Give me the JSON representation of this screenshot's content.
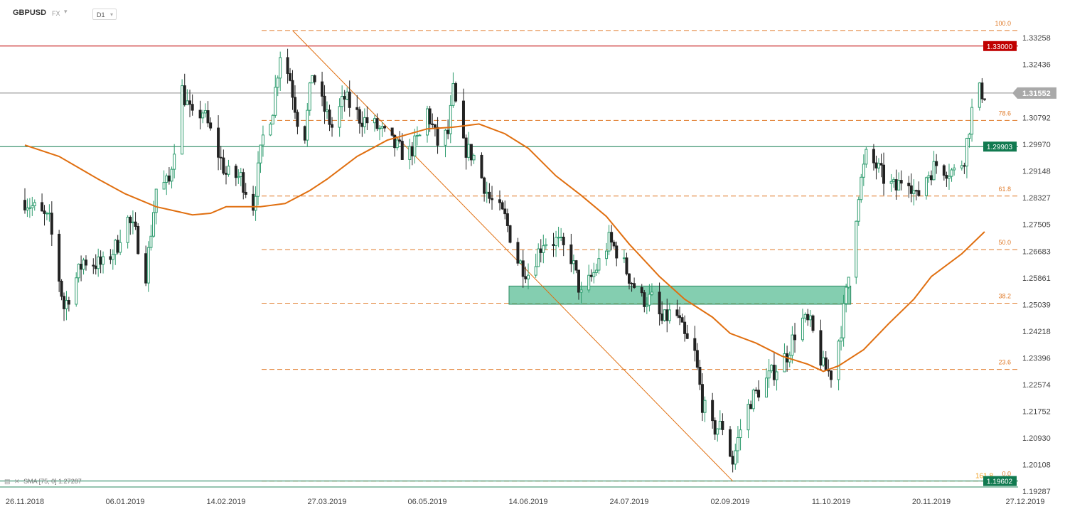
{
  "header": {
    "symbol": "GBPUSD",
    "market": "FX",
    "timeframe": "D1"
  },
  "indicator_legend": {
    "name": "SMA",
    "params": "[75, 0]",
    "value": "1.27287"
  },
  "colors": {
    "bull": "#2e9c6e",
    "bear": "#222222",
    "sma": "#e06f10",
    "fib": "#e07b2a",
    "resistance": "#c00000",
    "support": "#117a50",
    "price": "#8a8a8a",
    "zone": "#5bbd95"
  },
  "chart_data": {
    "type": "candlestick",
    "symbol": "GBPUSD",
    "timeframe": "D1",
    "x_ticks": [
      "26.11.2018",
      "06.01.2019",
      "14.02.2019",
      "27.03.2019",
      "06.05.2019",
      "14.06.2019",
      "24.07.2019",
      "02.09.2019",
      "11.10.2019",
      "20.11.2019",
      "27.12.2019"
    ],
    "y_ticks": [
      1.33258,
      1.32436,
      1.30792,
      1.2997,
      1.29148,
      1.28327,
      1.27505,
      1.26683,
      1.25861,
      1.25039,
      1.24218,
      1.23396,
      1.22574,
      1.21752,
      1.2093,
      1.20108,
      1.19287
    ],
    "ylim": [
      1.1915,
      1.3382
    ],
    "horizontal_levels": [
      {
        "label": "1.33000",
        "value": 1.33,
        "role": "resistance"
      },
      {
        "label": "1.31552",
        "value": 1.31552,
        "role": "price"
      },
      {
        "label": "1.29903",
        "value": 1.29903,
        "role": "support"
      },
      {
        "label": "1.19602",
        "value": 1.19602,
        "role": "support"
      }
    ],
    "fibonacci": [
      {
        "label": "100.0",
        "value": 1.3348
      },
      {
        "label": "78.6",
        "value": 1.3071
      },
      {
        "label": "61.8",
        "value": 1.2838
      },
      {
        "label": "50.0",
        "value": 1.2673
      },
      {
        "label": "38.2",
        "value": 1.2508
      },
      {
        "label": "23.6",
        "value": 1.2304
      },
      {
        "label": "0.0",
        "value": 1.19602
      }
    ],
    "fib_extension_label": "161.8",
    "zone": {
      "from": "2019-06-14",
      "to": "2019-10-18",
      "low": 1.252,
      "high": 1.2552
    },
    "trendline": {
      "start": [
        "2019-03-13",
        1.3348
      ],
      "end": [
        "2019-09-03",
        1.196
      ]
    },
    "sma": {
      "period": 75,
      "shift": 0,
      "last": 1.27287,
      "points": [
        [
          "2018-11-26",
          1.2995
        ],
        [
          "2018-12-10",
          1.296
        ],
        [
          "2018-12-26",
          1.289
        ],
        [
          "2019-01-06",
          1.2845
        ],
        [
          "2019-01-18",
          1.2805
        ],
        [
          "2019-02-01",
          1.278
        ],
        [
          "2019-02-08",
          1.2785
        ],
        [
          "2019-02-14",
          1.2805
        ],
        [
          "2019-02-28",
          1.2805
        ],
        [
          "2019-03-10",
          1.2815
        ],
        [
          "2019-03-20",
          1.2855
        ],
        [
          "2019-03-27",
          1.289
        ],
        [
          "2019-04-08",
          1.296
        ],
        [
          "2019-04-20",
          1.301
        ],
        [
          "2019-05-06",
          1.3045
        ],
        [
          "2019-05-16",
          1.305
        ],
        [
          "2019-05-26",
          1.306
        ],
        [
          "2019-06-05",
          1.303
        ],
        [
          "2019-06-14",
          1.2985
        ],
        [
          "2019-06-25",
          1.29
        ],
        [
          "2019-07-05",
          1.284
        ],
        [
          "2019-07-15",
          1.2775
        ],
        [
          "2019-07-24",
          1.269
        ],
        [
          "2019-08-05",
          1.259
        ],
        [
          "2019-08-15",
          1.252
        ],
        [
          "2019-08-26",
          1.2465
        ],
        [
          "2019-09-02",
          1.2415
        ],
        [
          "2019-09-12",
          1.2385
        ],
        [
          "2019-09-22",
          1.2345
        ],
        [
          "2019-10-02",
          1.232
        ],
        [
          "2019-10-08",
          1.2298
        ],
        [
          "2019-10-14",
          1.2315
        ],
        [
          "2019-10-24",
          1.2365
        ],
        [
          "2019-11-03",
          1.2445
        ],
        [
          "2019-11-13",
          1.252
        ],
        [
          "2019-11-20",
          1.259
        ],
        [
          "2019-12-02",
          1.266
        ],
        [
          "2019-12-11",
          1.2728
        ]
      ]
    },
    "price_path": [
      [
        "2018-11-26",
        1.2825
      ],
      [
        "2018-12-06",
        1.276
      ],
      [
        "2018-12-12",
        1.2495
      ],
      [
        "2018-12-20",
        1.264
      ],
      [
        "2018-12-28",
        1.2625
      ],
      [
        "2019-01-03",
        1.269
      ],
      [
        "2019-01-06",
        1.278
      ],
      [
        "2019-01-10",
        1.272
      ],
      [
        "2019-01-14",
        1.26
      ],
      [
        "2019-01-18",
        1.286
      ],
      [
        "2019-01-23",
        1.288
      ],
      [
        "2019-01-28",
        1.3165
      ],
      [
        "2019-02-01",
        1.3075
      ],
      [
        "2019-02-05",
        1.31
      ],
      [
        "2019-02-10",
        1.299
      ],
      [
        "2019-02-14",
        1.2905
      ],
      [
        "2019-02-20",
        1.2895
      ],
      [
        "2019-02-25",
        1.281
      ],
      [
        "2019-03-01",
        1.302
      ],
      [
        "2019-03-05",
        1.311
      ],
      [
        "2019-03-08",
        1.328
      ],
      [
        "2019-03-12",
        1.32
      ],
      [
        "2019-03-15",
        1.3075
      ],
      [
        "2019-03-18",
        1.303
      ],
      [
        "2019-03-21",
        1.322
      ],
      [
        "2019-03-25",
        1.312
      ],
      [
        "2019-03-29",
        1.305
      ],
      [
        "2019-04-03",
        1.314
      ],
      [
        "2019-04-09",
        1.308
      ],
      [
        "2019-04-16",
        1.305
      ],
      [
        "2019-04-22",
        1.3
      ],
      [
        "2019-04-28",
        1.296
      ],
      [
        "2019-05-03",
        1.302
      ],
      [
        "2019-05-06",
        1.31
      ],
      [
        "2019-05-10",
        1.3
      ],
      [
        "2019-05-14",
        1.303
      ],
      [
        "2019-05-16",
        1.316
      ],
      [
        "2019-05-20",
        1.299
      ],
      [
        "2019-05-24",
        1.296
      ],
      [
        "2019-05-30",
        1.283
      ],
      [
        "2019-06-05",
        1.277
      ],
      [
        "2019-06-10",
        1.264
      ],
      [
        "2019-06-14",
        1.26
      ],
      [
        "2019-06-20",
        1.27
      ],
      [
        "2019-06-25",
        1.27
      ],
      [
        "2019-07-01",
        1.265
      ],
      [
        "2019-07-05",
        1.253
      ],
      [
        "2019-07-10",
        1.26
      ],
      [
        "2019-07-16",
        1.27
      ],
      [
        "2019-07-20",
        1.266
      ],
      [
        "2019-07-24",
        1.259
      ],
      [
        "2019-07-29",
        1.252
      ],
      [
        "2019-08-02",
        1.252
      ],
      [
        "2019-08-06",
        1.245
      ],
      [
        "2019-08-11",
        1.249
      ],
      [
        "2019-08-15",
        1.24
      ],
      [
        "2019-08-19",
        1.235
      ],
      [
        "2019-08-22",
        1.22
      ],
      [
        "2019-08-26",
        1.212
      ],
      [
        "2019-08-30",
        1.213
      ],
      [
        "2019-09-03",
        1.202
      ],
      [
        "2019-09-06",
        1.212
      ],
      [
        "2019-09-10",
        1.221
      ],
      [
        "2019-09-15",
        1.226
      ],
      [
        "2019-09-19",
        1.23
      ],
      [
        "2019-09-24",
        1.235
      ],
      [
        "2019-09-29",
        1.246
      ],
      [
        "2019-10-03",
        1.244
      ],
      [
        "2019-10-08",
        1.231
      ],
      [
        "2019-10-11",
        1.229
      ],
      [
        "2019-10-15",
        1.243
      ],
      [
        "2019-10-18",
        1.259
      ],
      [
        "2019-10-22",
        1.285
      ],
      [
        "2019-10-25",
        1.296
      ],
      [
        "2019-10-29",
        1.293
      ],
      [
        "2019-11-02",
        1.288
      ],
      [
        "2019-11-06",
        1.286
      ],
      [
        "2019-11-10",
        1.292
      ],
      [
        "2019-11-14",
        1.283
      ],
      [
        "2019-11-18",
        1.29
      ],
      [
        "2019-11-22",
        1.2935
      ],
      [
        "2019-11-26",
        1.292
      ],
      [
        "2019-11-30",
        1.291
      ],
      [
        "2019-12-03",
        1.296
      ],
      [
        "2019-12-06",
        1.31
      ],
      [
        "2019-12-09",
        1.316
      ],
      [
        "2019-12-11",
        1.3155
      ]
    ]
  }
}
